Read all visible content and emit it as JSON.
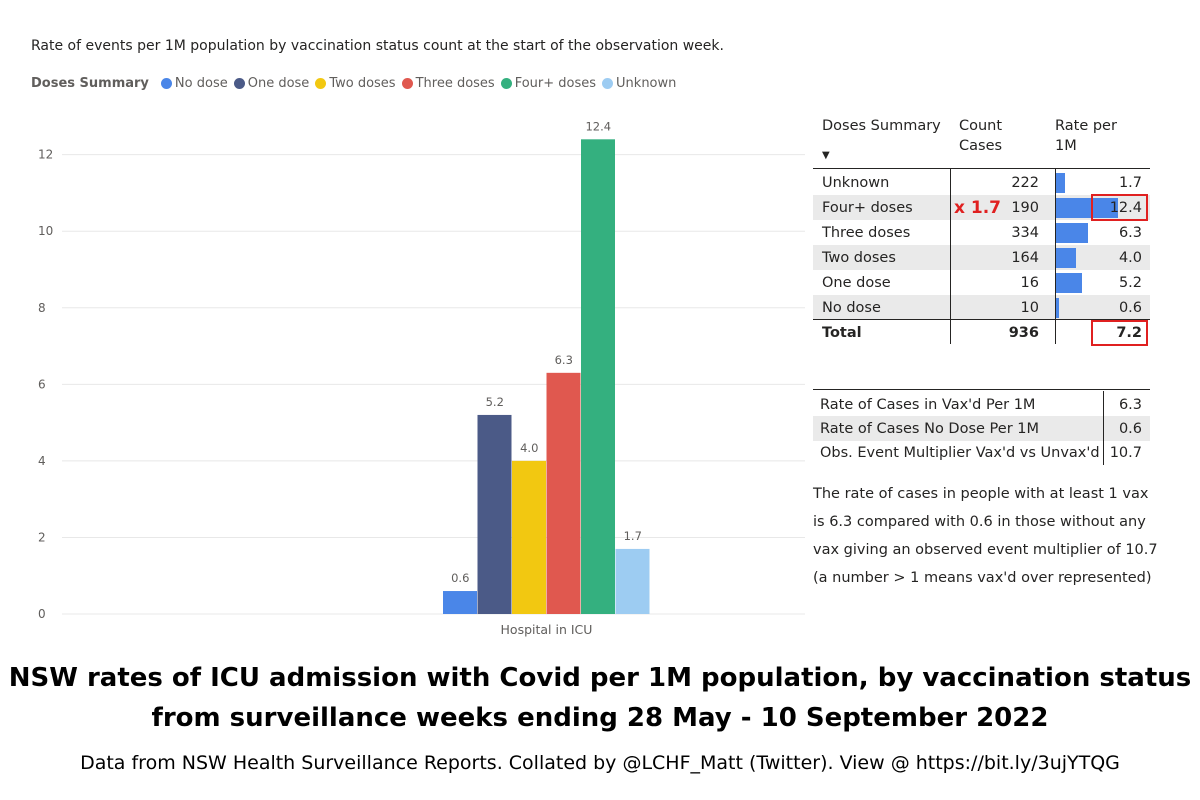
{
  "chart_title": "Rate of events per 1M population by vaccination status count at the start of the observation week.",
  "legend": {
    "title": "Doses Summary",
    "items": [
      {
        "label": "No dose",
        "color": "#4a86e8"
      },
      {
        "label": "One dose",
        "color": "#4b5a87"
      },
      {
        "label": "Two doses",
        "color": "#f2c811"
      },
      {
        "label": "Three doses",
        "color": "#e0584f"
      },
      {
        "label": "Four+ doses",
        "color": "#34b07f"
      },
      {
        "label": "Unknown",
        "color": "#9dccf2"
      }
    ]
  },
  "chart_data": {
    "type": "bar",
    "title": "Rate of events per 1M population by vaccination status count at the start of the observation week.",
    "categories": [
      "Hospital in ICU"
    ],
    "series": [
      {
        "name": "No dose",
        "values": [
          0.6
        ],
        "color": "#4a86e8",
        "label": "0.6"
      },
      {
        "name": "One dose",
        "values": [
          5.2
        ],
        "color": "#4b5a87",
        "label": "5.2"
      },
      {
        "name": "Two doses",
        "values": [
          4.0
        ],
        "color": "#f2c811",
        "label": "4.0"
      },
      {
        "name": "Three doses",
        "values": [
          6.3
        ],
        "color": "#e0584f",
        "label": "6.3"
      },
      {
        "name": "Four+ doses",
        "values": [
          12.4
        ],
        "color": "#34b07f",
        "label": "12.4"
      },
      {
        "name": "Unknown",
        "values": [
          1.7
        ],
        "color": "#9dccf2",
        "label": "1.7"
      }
    ],
    "y_ticks": [
      0,
      2,
      4,
      6,
      8,
      10,
      12
    ],
    "ylim": [
      0,
      12.8
    ],
    "xlabel": "",
    "ylabel": "",
    "legend_position": "top-left",
    "grid": true
  },
  "table": {
    "headers": {
      "doses_summary": "Doses Summary",
      "count_cases": "Count Cases",
      "rate_per_1m": "Rate per 1M"
    },
    "sort_icon": "sort-descending-icon",
    "rows": [
      {
        "name": "Unknown",
        "count": "222",
        "rate": "1.7",
        "rate_value": 1.7
      },
      {
        "name": "Four+ doses",
        "count": "190",
        "rate": "12.4",
        "rate_value": 12.4
      },
      {
        "name": "Three doses",
        "count": "334",
        "rate": "6.3",
        "rate_value": 6.3
      },
      {
        "name": "Two doses",
        "count": "164",
        "rate": "4.0",
        "rate_value": 4.0
      },
      {
        "name": "One dose",
        "count": "16",
        "rate": "5.2",
        "rate_value": 5.2
      },
      {
        "name": "No dose",
        "count": "10",
        "rate": "0.6",
        "rate_value": 0.6
      }
    ],
    "total": {
      "name": "Total",
      "count": "936",
      "rate": "7.2"
    },
    "multiplier_annotation": "x 1.7",
    "highlight_color": "#e02020"
  },
  "summary_table": {
    "rows": [
      {
        "label": "Rate of Cases in Vax'd Per 1M",
        "value": "6.3"
      },
      {
        "label": "Rate of Cases No Dose Per 1M",
        "value": "0.6"
      },
      {
        "label": "Obs. Event Multiplier Vax'd vs Unvax'd",
        "value": "10.7"
      }
    ]
  },
  "summary_text": "The rate of cases in people with at least 1 vax is 6.3 compared with 0.6 in those without any vax giving an observed event multiplier of 10.7 (a number > 1 means vax'd over represented)",
  "heading": {
    "line1": "NSW rates of ICU admission with Covid per 1M population, by vaccination status",
    "line2": "from surveillance weeks ending 28 May - 10 September 2022"
  },
  "footer": "Data from NSW Health Surveillance Reports. Collated by @LCHF_Matt (Twitter). View @ https://bit.ly/3ujYTQG"
}
